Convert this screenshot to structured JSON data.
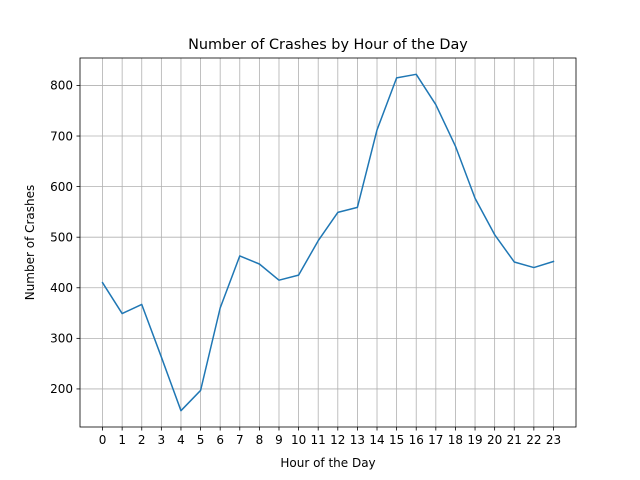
{
  "chart_data": {
    "type": "line",
    "title": "Number of Crashes by Hour of the Day",
    "xlabel": "Hour of the Day",
    "ylabel": "Number of Crashes",
    "x": [
      0,
      1,
      2,
      3,
      4,
      5,
      6,
      7,
      8,
      9,
      10,
      11,
      12,
      13,
      14,
      15,
      16,
      17,
      18,
      19,
      20,
      21,
      22,
      23
    ],
    "series": [
      {
        "values": [
          410,
          349,
          367,
          263,
          157,
          197,
          360,
          463,
          447,
          415,
          425,
          493,
          549,
          559,
          712,
          815,
          822,
          762,
          680,
          577,
          505,
          451,
          440,
          452
        ],
        "color": "#1f77b4"
      }
    ],
    "xlim": [
      -1.15,
      24.15
    ],
    "ylim": [
      124.75,
      854.25
    ],
    "yticks": [
      200,
      300,
      400,
      500,
      600,
      700,
      800
    ],
    "grid": true
  }
}
